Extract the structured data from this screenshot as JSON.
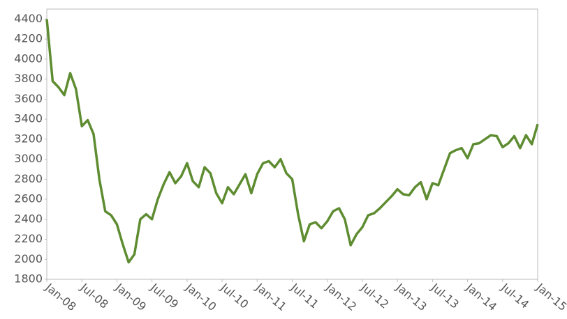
{
  "chart_data": {
    "type": "line",
    "x": [
      "2008-01",
      "2008-02",
      "2008-03",
      "2008-04",
      "2008-05",
      "2008-06",
      "2008-07",
      "2008-08",
      "2008-09",
      "2008-10",
      "2008-11",
      "2008-12",
      "2009-01",
      "2009-02",
      "2009-03",
      "2009-04",
      "2009-05",
      "2009-06",
      "2009-07",
      "2009-08",
      "2009-09",
      "2009-10",
      "2009-11",
      "2009-12",
      "2010-01",
      "2010-02",
      "2010-03",
      "2010-04",
      "2010-05",
      "2010-06",
      "2010-07",
      "2010-08",
      "2010-09",
      "2010-10",
      "2010-11",
      "2010-12",
      "2011-01",
      "2011-02",
      "2011-03",
      "2011-04",
      "2011-05",
      "2011-06",
      "2011-07",
      "2011-08",
      "2011-09",
      "2011-10",
      "2011-11",
      "2011-12",
      "2012-01",
      "2012-02",
      "2012-03",
      "2012-04",
      "2012-05",
      "2012-06",
      "2012-07",
      "2012-08",
      "2012-09",
      "2012-10",
      "2012-11",
      "2012-12",
      "2013-01",
      "2013-02",
      "2013-03",
      "2013-04",
      "2013-05",
      "2013-06",
      "2013-07",
      "2013-08",
      "2013-09",
      "2013-10",
      "2013-11",
      "2013-12",
      "2014-01",
      "2014-02",
      "2014-03",
      "2014-04",
      "2014-05",
      "2014-06",
      "2014-07",
      "2014-08",
      "2014-09",
      "2014-10",
      "2014-11",
      "2014-12",
      "2015-01"
    ],
    "series": [
      {
        "color": "#5e8c31",
        "values": [
          4400,
          3780,
          3720,
          3640,
          3860,
          3700,
          3330,
          3390,
          3250,
          2800,
          2480,
          2440,
          2350,
          2150,
          1970,
          2050,
          2400,
          2450,
          2400,
          2600,
          2750,
          2870,
          2760,
          2830,
          2960,
          2780,
          2720,
          2920,
          2860,
          2660,
          2560,
          2720,
          2650,
          2750,
          2850,
          2660,
          2850,
          2960,
          2980,
          2920,
          3000,
          2860,
          2800,
          2450,
          2180,
          2350,
          2370,
          2310,
          2380,
          2480,
          2510,
          2400,
          2140,
          2250,
          2320,
          2440,
          2460,
          2510,
          2570,
          2630,
          2700,
          2650,
          2640,
          2720,
          2770,
          2600,
          2760,
          2740,
          2900,
          3060,
          3090,
          3110,
          3010,
          3150,
          3160,
          3200,
          3240,
          3230,
          3120,
          3160,
          3230,
          3110,
          3240,
          3150,
          3350
        ]
      }
    ],
    "xlim": [
      "2008-01",
      "2015-01"
    ],
    "xticks": [
      {
        "value": "2008-01",
        "label": "Jan-08"
      },
      {
        "value": "2008-07",
        "label": "Jul-08"
      },
      {
        "value": "2009-01",
        "label": "Jan-09"
      },
      {
        "value": "2009-07",
        "label": "Jul-09"
      },
      {
        "value": "2010-01",
        "label": "Jan-10"
      },
      {
        "value": "2010-07",
        "label": "Jul-10"
      },
      {
        "value": "2011-01",
        "label": "Jan-11"
      },
      {
        "value": "2011-07",
        "label": "Jul-11"
      },
      {
        "value": "2012-01",
        "label": "Jan-12"
      },
      {
        "value": "2012-07",
        "label": "Jul-12"
      },
      {
        "value": "2013-01",
        "label": "Jan-13"
      },
      {
        "value": "2013-07",
        "label": "Jul-13"
      },
      {
        "value": "2014-01",
        "label": "Jan-14"
      },
      {
        "value": "2014-07",
        "label": "Jul-14"
      },
      {
        "value": "2015-01",
        "label": "Jan-15"
      }
    ],
    "ylim": [
      1800,
      4500
    ],
    "yticks": [
      1800,
      2000,
      2200,
      2400,
      2600,
      2800,
      3000,
      3200,
      3400,
      3600,
      3800,
      4000,
      4200,
      4400
    ],
    "grid": false
  }
}
